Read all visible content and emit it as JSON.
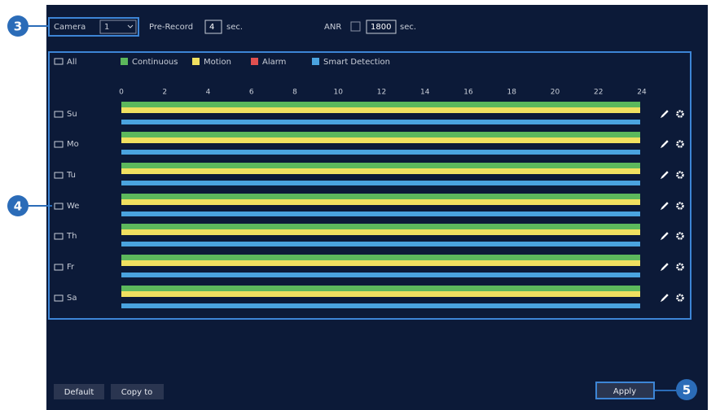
{
  "callouts": [
    "3",
    "4",
    "5"
  ],
  "camera": {
    "label": "Camera",
    "value": 1
  },
  "pre_record": {
    "label": "Pre-Record",
    "value": 4,
    "unit": "sec."
  },
  "anr": {
    "label": "ANR",
    "value": 1800,
    "unit": "sec."
  },
  "schedule": {
    "all_label": "All",
    "legend": [
      {
        "label": "Continuous",
        "color": "#5cb85c"
      },
      {
        "label": "Motion",
        "color": "#f0e060"
      },
      {
        "label": "Alarm",
        "color": "#e05050"
      },
      {
        "label": "Smart Detection",
        "color": "#4aa3df"
      }
    ],
    "hours": [
      0,
      2,
      4,
      6,
      8,
      10,
      12,
      14,
      16,
      18,
      20,
      22,
      24
    ],
    "rows": [
      {
        "day": "Su",
        "continuous": [
          0,
          24
        ],
        "motion": [
          0,
          24
        ],
        "smart_detection": [
          0,
          24
        ]
      },
      {
        "day": "Mo",
        "continuous": [
          0,
          24
        ],
        "motion": [
          0,
          24
        ],
        "smart_detection": [
          0,
          24
        ]
      },
      {
        "day": "Tu",
        "continuous": [
          0,
          24
        ],
        "motion": [
          0,
          24
        ],
        "smart_detection": [
          0,
          24
        ]
      },
      {
        "day": "We",
        "continuous": [
          0,
          24
        ],
        "motion": [
          0,
          24
        ],
        "smart_detection": [
          0,
          24
        ]
      },
      {
        "day": "Th",
        "continuous": [
          0,
          24
        ],
        "motion": [
          0,
          24
        ],
        "smart_detection": [
          0,
          24
        ]
      },
      {
        "day": "Fr",
        "continuous": [
          0,
          24
        ],
        "motion": [
          0,
          24
        ],
        "smart_detection": [
          0,
          24
        ]
      },
      {
        "day": "Sa",
        "continuous": [
          0,
          24
        ],
        "motion": [
          0,
          24
        ],
        "smart_detection": [
          0,
          24
        ]
      }
    ]
  },
  "buttons": {
    "default": "Default",
    "copy_to": "Copy to",
    "apply": "Apply"
  }
}
